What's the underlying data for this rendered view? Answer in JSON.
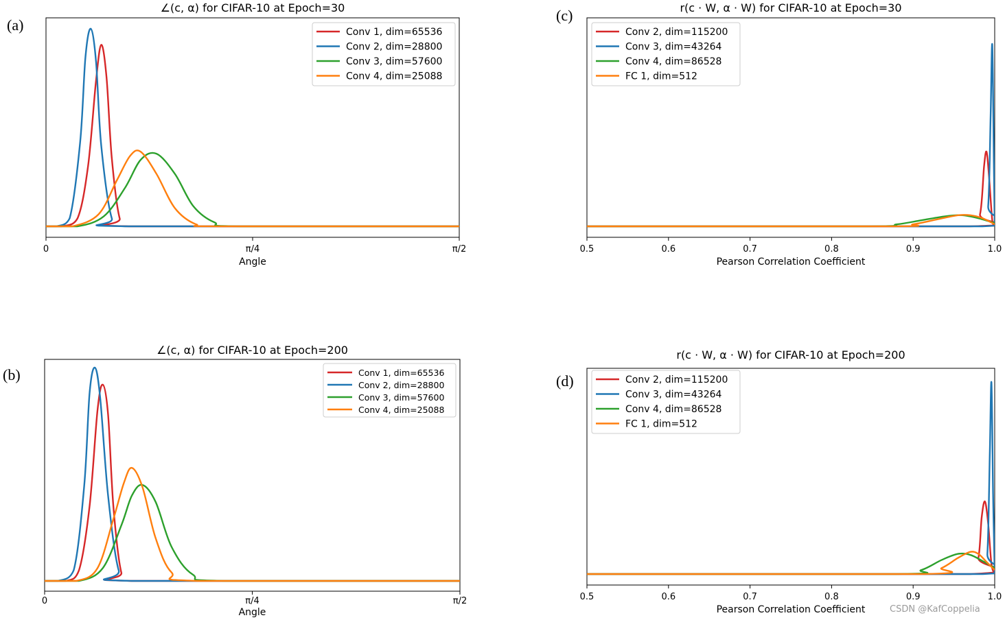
{
  "watermark": "CSDN @KafCoppelia",
  "panels": [
    {
      "letter": "(a)",
      "title": "∠(c, α) for CIFAR-10 at Epoch=30"
    },
    {
      "letter": "(b)",
      "title": "∠(c, α) for CIFAR-10 at Epoch=200"
    },
    {
      "letter": "(c)",
      "title": "r(c · W, α · W) for CIFAR-10 at Epoch=30"
    },
    {
      "letter": "(d)",
      "title": "r(c · W, α · W) for CIFAR-10 at Epoch=200"
    }
  ],
  "colors": {
    "red": "#d62728",
    "blue": "#1f77b4",
    "green": "#2ca02c",
    "orange": "#ff7f0e"
  },
  "chart_data": [
    {
      "type": "line",
      "title": "∠(c, α) for CIFAR-10 at Epoch=30",
      "xlabel": "Angle",
      "ylabel": "",
      "xlim": [
        0,
        1.5708
      ],
      "x_ticks": [
        0,
        0.7854,
        1.5708
      ],
      "x_tick_labels": [
        "0",
        "π/4",
        "π/2"
      ],
      "legend_position": "top-right",
      "series": [
        {
          "name": "Conv 1, dim=65536",
          "color": "#d62728",
          "x": [
            0.06,
            0.12,
            0.16,
            0.19,
            0.21,
            0.23,
            0.25,
            0.28,
            0.32
          ],
          "y": [
            0.0,
            0.04,
            0.3,
            0.72,
            0.9,
            0.74,
            0.34,
            0.04,
            0.0
          ]
        },
        {
          "name": "Conv 2, dim=28800",
          "color": "#1f77b4",
          "x": [
            0.04,
            0.09,
            0.13,
            0.15,
            0.17,
            0.19,
            0.21,
            0.25,
            0.3
          ],
          "y": [
            0.0,
            0.04,
            0.42,
            0.84,
            0.98,
            0.82,
            0.4,
            0.04,
            0.0
          ]
        },
        {
          "name": "Conv 3, dim=57600",
          "color": "#2ca02c",
          "x": [
            0.12,
            0.22,
            0.3,
            0.36,
            0.42,
            0.49,
            0.56,
            0.64,
            0.74
          ],
          "y": [
            0.0,
            0.05,
            0.19,
            0.33,
            0.36,
            0.26,
            0.1,
            0.02,
            0.0
          ]
        },
        {
          "name": "Conv 4, dim=25088",
          "color": "#ff7f0e",
          "x": [
            0.1,
            0.2,
            0.27,
            0.32,
            0.36,
            0.42,
            0.49,
            0.57,
            0.66
          ],
          "y": [
            0.0,
            0.06,
            0.23,
            0.35,
            0.37,
            0.26,
            0.09,
            0.01,
            0.0
          ]
        }
      ]
    },
    {
      "type": "line",
      "title": "∠(c, α) for CIFAR-10 at Epoch=200",
      "xlabel": "Angle",
      "ylabel": "",
      "xlim": [
        0,
        1.5708
      ],
      "x_ticks": [
        0,
        0.7854,
        1.5708
      ],
      "x_tick_labels": [
        "0",
        "π/4",
        "π/2"
      ],
      "legend_position": "top-right",
      "series": [
        {
          "name": "Conv 1, dim=65536",
          "color": "#d62728",
          "x": [
            0.08,
            0.13,
            0.17,
            0.2,
            0.22,
            0.24,
            0.26,
            0.29,
            0.33
          ],
          "y": [
            0.0,
            0.05,
            0.35,
            0.8,
            0.92,
            0.78,
            0.35,
            0.04,
            0.0
          ]
        },
        {
          "name": "Conv 2, dim=28800",
          "color": "#1f77b4",
          "x": [
            0.05,
            0.11,
            0.15,
            0.17,
            0.19,
            0.21,
            0.24,
            0.28,
            0.33
          ],
          "y": [
            0.0,
            0.05,
            0.45,
            0.88,
            1.0,
            0.86,
            0.4,
            0.05,
            0.0
          ]
        },
        {
          "name": "Conv 3, dim=57600",
          "color": "#2ca02c",
          "x": [
            0.13,
            0.22,
            0.29,
            0.33,
            0.37,
            0.42,
            0.48,
            0.56,
            0.68
          ],
          "y": [
            0.0,
            0.06,
            0.26,
            0.4,
            0.45,
            0.37,
            0.16,
            0.03,
            0.0
          ]
        },
        {
          "name": "Conv 4, dim=25088",
          "color": "#ff7f0e",
          "x": [
            0.12,
            0.2,
            0.26,
            0.3,
            0.33,
            0.37,
            0.42,
            0.48,
            0.58
          ],
          "y": [
            0.0,
            0.06,
            0.29,
            0.46,
            0.53,
            0.44,
            0.2,
            0.04,
            0.0
          ]
        }
      ]
    },
    {
      "type": "line",
      "title": "r(c · W, α · W) for CIFAR-10 at Epoch=30",
      "xlabel": "Pearson Correlation Coefficient",
      "ylabel": "",
      "xlim": [
        0.5,
        1.0
      ],
      "x_ticks": [
        0.5,
        0.6,
        0.7,
        0.8,
        0.9,
        1.0
      ],
      "x_tick_labels": [
        "0.5",
        "0.6",
        "0.7",
        "0.8",
        "0.9",
        "1.0"
      ],
      "legend_position": "top-left",
      "series": [
        {
          "name": "Conv 2, dim=115200",
          "color": "#d62728",
          "x": [
            0.5,
            0.97,
            0.982,
            0.987,
            0.99,
            0.993,
            0.997,
            1.0
          ],
          "y": [
            0.0,
            0.0,
            0.06,
            0.3,
            0.37,
            0.25,
            0.03,
            0.0
          ]
        },
        {
          "name": "Conv 3, dim=43264",
          "color": "#1f77b4",
          "x": [
            0.5,
            0.985,
            0.992,
            0.995,
            0.997,
            0.999,
            1.0
          ],
          "y": [
            0.0,
            0.0,
            0.1,
            0.55,
            0.9,
            0.3,
            0.0
          ]
        },
        {
          "name": "Conv 4, dim=86528",
          "color": "#2ca02c",
          "x": [
            0.5,
            0.84,
            0.88,
            0.91,
            0.94,
            0.96,
            0.98,
            1.0
          ],
          "y": [
            0.0,
            0.0,
            0.01,
            0.03,
            0.05,
            0.055,
            0.04,
            0.016
          ]
        },
        {
          "name": "FC 1, dim=512",
          "color": "#ff7f0e",
          "x": [
            0.5,
            0.87,
            0.9,
            0.93,
            0.955,
            0.97,
            0.985,
            1.0
          ],
          "y": [
            0.0,
            0.0,
            0.01,
            0.035,
            0.055,
            0.055,
            0.04,
            0.01
          ]
        }
      ]
    },
    {
      "type": "line",
      "title": "r(c · W, α · W) for CIFAR-10 at Epoch=200",
      "xlabel": "Pearson Correlation Coefficient",
      "ylabel": "",
      "xlim": [
        0.5,
        1.0
      ],
      "x_ticks": [
        0.5,
        0.6,
        0.7,
        0.8,
        0.9,
        1.0
      ],
      "x_tick_labels": [
        "0.5",
        "0.6",
        "0.7",
        "0.8",
        "0.9",
        "1.0"
      ],
      "legend_position": "top-left",
      "series": [
        {
          "name": "Conv 2, dim=115200",
          "color": "#d62728",
          "x": [
            0.5,
            0.97,
            0.98,
            0.984,
            0.988,
            0.992,
            0.996,
            1.0
          ],
          "y": [
            0.0,
            0.0,
            0.08,
            0.28,
            0.36,
            0.25,
            0.05,
            0.0
          ]
        },
        {
          "name": "Conv 3, dim=43264",
          "color": "#1f77b4",
          "x": [
            0.5,
            0.985,
            0.991,
            0.994,
            0.996,
            0.998,
            1.0
          ],
          "y": [
            0.0,
            0.0,
            0.1,
            0.6,
            0.95,
            0.4,
            0.0
          ]
        },
        {
          "name": "Conv 4, dim=86528",
          "color": "#2ca02c",
          "x": [
            0.5,
            0.88,
            0.91,
            0.935,
            0.955,
            0.97,
            0.985,
            1.0
          ],
          "y": [
            0.0,
            0.0,
            0.02,
            0.07,
            0.1,
            0.095,
            0.065,
            0.03
          ]
        },
        {
          "name": "FC 1, dim=512",
          "color": "#ff7f0e",
          "x": [
            0.5,
            0.91,
            0.935,
            0.955,
            0.97,
            0.98,
            0.99,
            1.0
          ],
          "y": [
            0.0,
            0.0,
            0.03,
            0.08,
            0.11,
            0.1,
            0.06,
            0.02
          ]
        }
      ]
    }
  ]
}
